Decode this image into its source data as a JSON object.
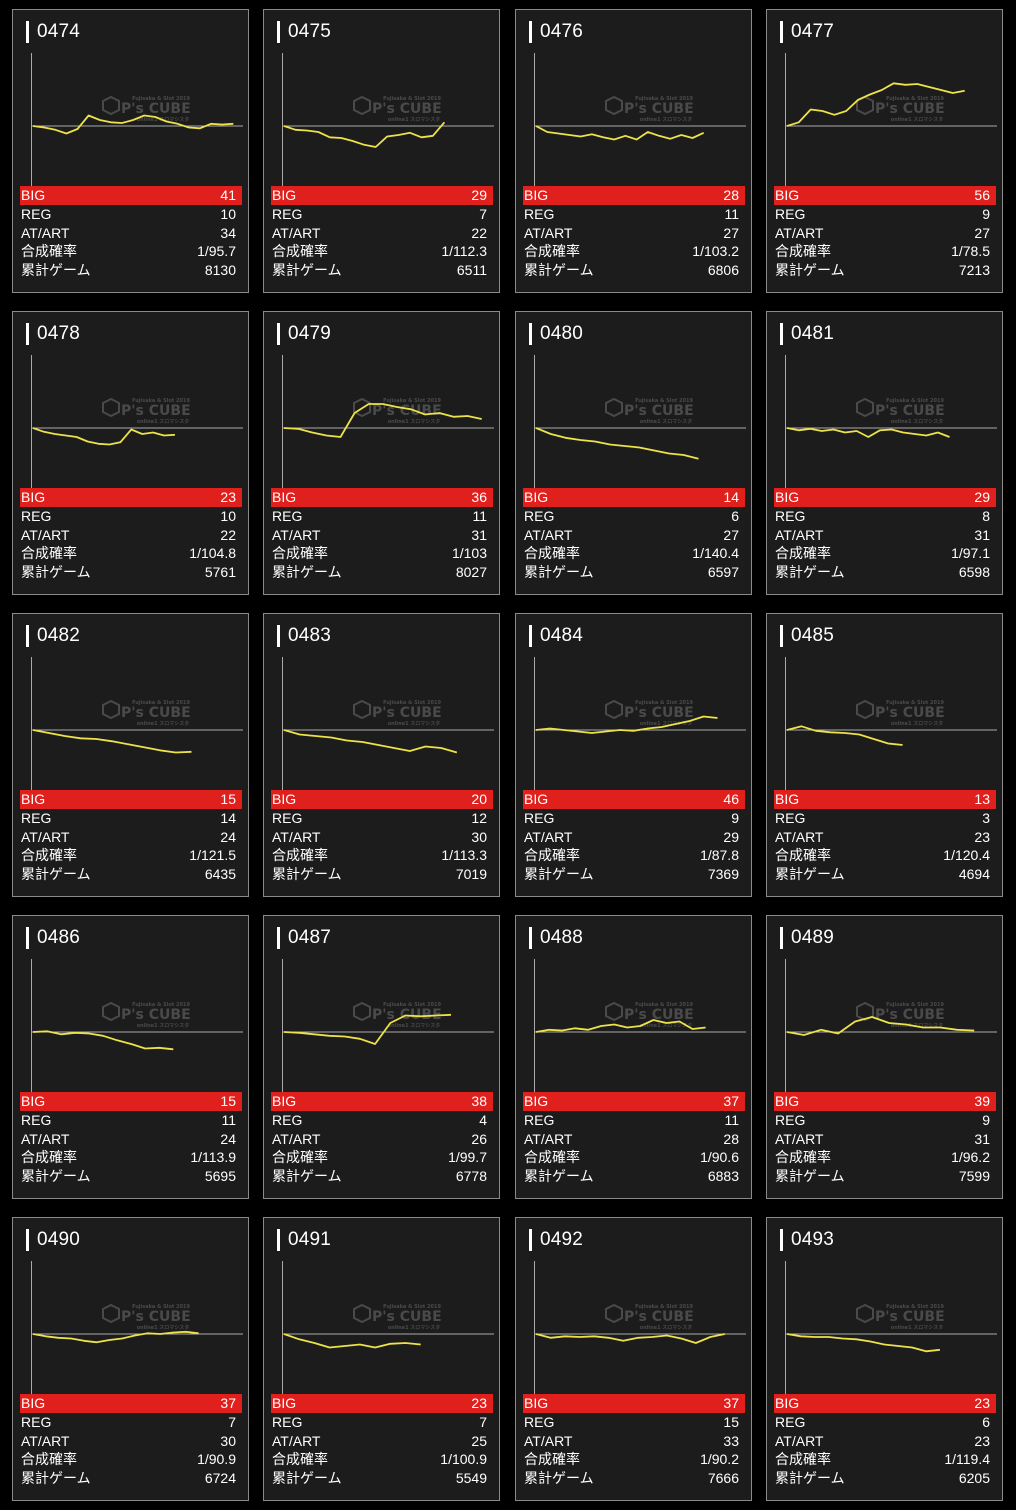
{
  "labels": {
    "big": "BIG",
    "reg": "REG",
    "at": "AT/ART",
    "prob": "合成確率",
    "games": "累計ゲーム"
  },
  "watermark": {
    "brand": "P's CUBE",
    "top_text": "Fujisaka & Slot 2019",
    "sub_text": "online1 スロマシスタ"
  },
  "colors": {
    "big_bar": "#e0201c",
    "line": "#ede24a",
    "card_bg": "#1c1c1c",
    "card_border": "#8a8a8a",
    "page_bg": "#000000"
  },
  "machines": [
    {
      "id": "0474",
      "big": "41",
      "reg": "10",
      "at": "34",
      "prob": "1/95.7",
      "games": "8130",
      "trend": [
        0,
        -2,
        -5,
        -10,
        -4,
        14,
        8,
        5,
        4,
        8,
        14,
        12,
        6,
        3,
        -2,
        -3,
        3,
        2,
        3
      ]
    },
    {
      "id": "0475",
      "big": "29",
      "reg": "7",
      "at": "22",
      "prob": "1/112.3",
      "games": "6511",
      "trend": [
        0,
        -5,
        -6,
        -8,
        -15,
        -16,
        -20,
        -25,
        -28,
        -14,
        -12,
        -9,
        -15,
        -13,
        5
      ]
    },
    {
      "id": "0476",
      "big": "28",
      "reg": "11",
      "at": "27",
      "prob": "1/103.2",
      "games": "6806",
      "trend": [
        0,
        -8,
        -10,
        -12,
        -14,
        -11,
        -15,
        -18,
        -13,
        -18,
        -8,
        -13,
        -17,
        -12,
        -16,
        -9
      ]
    },
    {
      "id": "0477",
      "big": "56",
      "reg": "9",
      "at": "27",
      "prob": "1/78.5",
      "games": "7213",
      "trend": [
        0,
        5,
        22,
        20,
        15,
        20,
        35,
        42,
        48,
        57,
        55,
        56,
        52,
        48,
        44,
        47
      ]
    },
    {
      "id": "0478",
      "big": "23",
      "reg": "10",
      "at": "22",
      "prob": "1/104.8",
      "games": "5761",
      "trend": [
        0,
        -5,
        -8,
        -10,
        -12,
        -18,
        -21,
        -22,
        -19,
        -2,
        -8,
        -6,
        -10,
        -9
      ]
    },
    {
      "id": "0479",
      "big": "36",
      "reg": "11",
      "at": "31",
      "prob": "1/103",
      "games": "8027",
      "trend": [
        0,
        -1,
        -6,
        -10,
        -12,
        20,
        32,
        32,
        28,
        25,
        18,
        20,
        15,
        16,
        12
      ]
    },
    {
      "id": "0480",
      "big": "14",
      "reg": "6",
      "at": "27",
      "prob": "1/140.4",
      "games": "6597",
      "trend": [
        0,
        -8,
        -13,
        -16,
        -18,
        -22,
        -24,
        -26,
        -30,
        -34,
        -36,
        -41
      ]
    },
    {
      "id": "0481",
      "big": "29",
      "reg": "8",
      "at": "31",
      "prob": "1/97.1",
      "games": "6598",
      "trend": [
        0,
        -3,
        -1,
        -4,
        -2,
        -6,
        -4,
        -12,
        -3,
        -2,
        -6,
        -8,
        -10,
        -6,
        -12
      ]
    },
    {
      "id": "0482",
      "big": "15",
      "reg": "14",
      "at": "24",
      "prob": "1/121.5",
      "games": "6435",
      "trend": [
        0,
        -4,
        -8,
        -11,
        -12,
        -15,
        -19,
        -23,
        -27,
        -30,
        -29
      ]
    },
    {
      "id": "0483",
      "big": "20",
      "reg": "12",
      "at": "30",
      "prob": "1/113.3",
      "games": "7019",
      "trend": [
        0,
        -6,
        -8,
        -10,
        -14,
        -16,
        -20,
        -24,
        -28,
        -22,
        -24,
        -30
      ]
    },
    {
      "id": "0484",
      "big": "46",
      "reg": "9",
      "at": "29",
      "prob": "1/87.8",
      "games": "7369",
      "trend": [
        0,
        2,
        0,
        -2,
        -4,
        -2,
        0,
        -1,
        2,
        4,
        8,
        12,
        18,
        16
      ]
    },
    {
      "id": "0485",
      "big": "13",
      "reg": "3",
      "at": "23",
      "prob": "1/120.4",
      "games": "4694",
      "trend": [
        0,
        5,
        -1,
        -3,
        -4,
        -6,
        -12,
        -18,
        -20
      ]
    },
    {
      "id": "0486",
      "big": "15",
      "reg": "11",
      "at": "24",
      "prob": "1/113.9",
      "games": "5695",
      "trend": [
        0,
        1,
        -3,
        -1,
        -2,
        -5,
        -11,
        -16,
        -22,
        -21,
        -23
      ]
    },
    {
      "id": "0487",
      "big": "38",
      "reg": "4",
      "at": "26",
      "prob": "1/99.7",
      "games": "6778",
      "trend": [
        0,
        -1,
        -3,
        -5,
        -6,
        -9,
        -16,
        12,
        22,
        21,
        22,
        23
      ]
    },
    {
      "id": "0488",
      "big": "37",
      "reg": "11",
      "at": "28",
      "prob": "1/90.6",
      "games": "6883",
      "trend": [
        0,
        3,
        2,
        5,
        3,
        8,
        10,
        6,
        8,
        16,
        12,
        14,
        4,
        6
      ]
    },
    {
      "id": "0489",
      "big": "39",
      "reg": "9",
      "at": "31",
      "prob": "1/96.2",
      "games": "7599",
      "trend": [
        0,
        -4,
        3,
        -2,
        14,
        20,
        12,
        10,
        6,
        6,
        3,
        2
      ]
    },
    {
      "id": "0490",
      "big": "37",
      "reg": "7",
      "at": "30",
      "prob": "1/90.9",
      "games": "6724",
      "trend": [
        0,
        -3,
        -5,
        -6,
        -9,
        -11,
        -8,
        -6,
        -2,
        1,
        0,
        2,
        3,
        1
      ]
    },
    {
      "id": "0491",
      "big": "23",
      "reg": "7",
      "at": "25",
      "prob": "1/100.9",
      "games": "5549",
      "trend": [
        0,
        -7,
        -12,
        -18,
        -16,
        -14,
        -18,
        -13,
        -12,
        -14
      ]
    },
    {
      "id": "0492",
      "big": "37",
      "reg": "15",
      "at": "33",
      "prob": "1/90.2",
      "games": "7666",
      "trend": [
        0,
        -5,
        -3,
        -4,
        -3,
        -5,
        -9,
        -5,
        -4,
        -2,
        -6,
        -12,
        -4,
        0
      ]
    },
    {
      "id": "0493",
      "big": "23",
      "reg": "6",
      "at": "23",
      "prob": "1/119.4",
      "games": "6205",
      "trend": [
        0,
        -3,
        -4,
        -4,
        -6,
        -7,
        -10,
        -14,
        -16,
        -18,
        -23,
        -21
      ]
    }
  ]
}
